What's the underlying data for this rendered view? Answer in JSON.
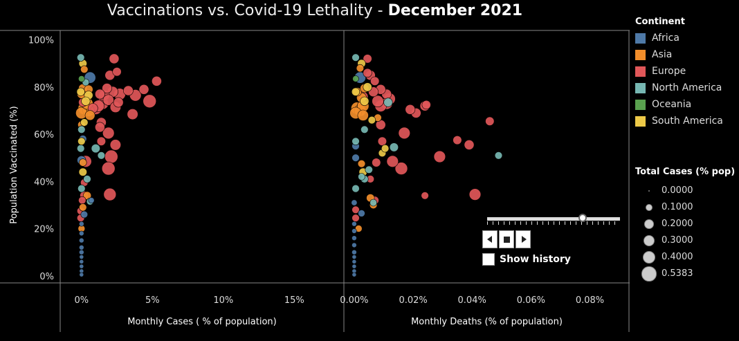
{
  "title": {
    "main": "Vaccinations vs. Covid-19 Lethality - ",
    "period": "December 2021"
  },
  "colors": {
    "Africa": "#4e79a7",
    "Asia": "#f28e2b",
    "Europe": "#e15759",
    "North America": "#76b7b2",
    "Oceania": "#59a14f",
    "South America": "#edc948"
  },
  "legend": {
    "title": "Continent",
    "items": [
      "Africa",
      "Asia",
      "Europe",
      "North America",
      "Oceania",
      "South America"
    ]
  },
  "size_legend": {
    "title": "Total Cases (% pop)",
    "items": [
      "0.0000",
      "0.1000",
      "0.2000",
      "0.3000",
      "0.4000",
      "0.5383"
    ],
    "values": [
      0,
      0.1,
      0.2,
      0.3,
      0.4,
      0.5383
    ]
  },
  "controls": {
    "show_history": "Show history",
    "slider_position": 0.72
  },
  "chart_data": [
    {
      "type": "scatter",
      "xlabel": "Monthly Cases ( % of population)",
      "ylabel": "Population Vaccinated (%)",
      "xlim": [
        -1.5,
        18.5
      ],
      "ylim": [
        -3,
        104
      ],
      "xticks": [
        0,
        5,
        10,
        15
      ],
      "xtick_labels": [
        "0%",
        "5%",
        "10%",
        "15%"
      ],
      "yticks": [
        0,
        20,
        40,
        60,
        80,
        100
      ],
      "ytick_labels": [
        "0%",
        "20%",
        "40%",
        "60%",
        "80%",
        "100%"
      ],
      "grid": false,
      "points": [
        {
          "x": 2.3,
          "y": 92,
          "c": "Europe",
          "s": 0.2
        },
        {
          "x": 2.5,
          "y": 86.5,
          "c": "Europe",
          "s": 0.15
        },
        {
          "x": 2.0,
          "y": 85,
          "c": "Europe",
          "s": 0.2
        },
        {
          "x": 5.3,
          "y": 82.5,
          "c": "Europe",
          "s": 0.2
        },
        {
          "x": 4.4,
          "y": 79,
          "c": "Europe",
          "s": 0.2
        },
        {
          "x": 3.3,
          "y": 78.5,
          "c": "Europe",
          "s": 0.2
        },
        {
          "x": 2.7,
          "y": 77,
          "c": "Europe",
          "s": 0.3
        },
        {
          "x": 2.2,
          "y": 78,
          "c": "Europe",
          "s": 0.25
        },
        {
          "x": 1.8,
          "y": 79.5,
          "c": "Europe",
          "s": 0.2
        },
        {
          "x": 1.6,
          "y": 76.5,
          "c": "Europe",
          "s": 0.25
        },
        {
          "x": 1.3,
          "y": 77,
          "c": "Europe",
          "s": 0.2
        },
        {
          "x": 1.9,
          "y": 74.5,
          "c": "Europe",
          "s": 0.25
        },
        {
          "x": 1.5,
          "y": 73,
          "c": "Europe",
          "s": 0.3
        },
        {
          "x": 1.2,
          "y": 72,
          "c": "Europe",
          "s": 0.3
        },
        {
          "x": 1.0,
          "y": 71,
          "c": "Europe",
          "s": 0.35
        },
        {
          "x": 2.4,
          "y": 71.5,
          "c": "Europe",
          "s": 0.25
        },
        {
          "x": 2.6,
          "y": 73.5,
          "c": "Europe",
          "s": 0.2
        },
        {
          "x": 3.8,
          "y": 76.5,
          "c": "Europe",
          "s": 0.3
        },
        {
          "x": 4.8,
          "y": 74,
          "c": "Europe",
          "s": 0.4
        },
        {
          "x": 3.6,
          "y": 68.5,
          "c": "Europe",
          "s": 0.25
        },
        {
          "x": 1.4,
          "y": 65,
          "c": "Europe",
          "s": 0.2
        },
        {
          "x": 1.3,
          "y": 63,
          "c": "Europe",
          "s": 0.2
        },
        {
          "x": 1.9,
          "y": 60.5,
          "c": "Europe",
          "s": 0.3
        },
        {
          "x": 1.4,
          "y": 57,
          "c": "Europe",
          "s": 0.15
        },
        {
          "x": 2.4,
          "y": 55.5,
          "c": "Europe",
          "s": 0.25
        },
        {
          "x": 2.1,
          "y": 50.5,
          "c": "Europe",
          "s": 0.4
        },
        {
          "x": 1.9,
          "y": 45.5,
          "c": "Europe",
          "s": 0.4
        },
        {
          "x": 2.0,
          "y": 34.5,
          "c": "Europe",
          "s": 0.35
        },
        {
          "x": 0.1,
          "y": 73.5,
          "c": "Europe",
          "s": 0.15
        },
        {
          "x": 0.3,
          "y": 48.5,
          "c": "Europe",
          "s": 0.3
        },
        {
          "x": 0.2,
          "y": 34,
          "c": "Europe",
          "s": 0.15
        },
        {
          "x": 0.05,
          "y": 32,
          "c": "Europe",
          "s": 0.1
        },
        {
          "x": -0.05,
          "y": 27.5,
          "c": "Europe",
          "s": 0.1
        },
        {
          "x": -0.05,
          "y": 24.5,
          "c": "Europe",
          "s": 0.1
        },
        {
          "x": 0.2,
          "y": 39.5,
          "c": "Europe",
          "s": 0.1
        },
        {
          "x": 0.8,
          "y": 71,
          "c": "Europe",
          "s": 0.2
        },
        {
          "x": 0.5,
          "y": 70,
          "c": "Asia",
          "s": 0.3
        },
        {
          "x": 0.2,
          "y": 71,
          "c": "Asia",
          "s": 0.35
        },
        {
          "x": 0.0,
          "y": 69,
          "c": "Asia",
          "s": 0.3
        },
        {
          "x": 0.4,
          "y": 73,
          "c": "Asia",
          "s": 0.3
        },
        {
          "x": 0.6,
          "y": 68,
          "c": "Asia",
          "s": 0.2
        },
        {
          "x": 0.3,
          "y": 76,
          "c": "Asia",
          "s": 0.2
        },
        {
          "x": 0.1,
          "y": 79.5,
          "c": "Asia",
          "s": 0.15
        },
        {
          "x": 0.5,
          "y": 79,
          "c": "Asia",
          "s": 0.15
        },
        {
          "x": 0.0,
          "y": 77,
          "c": "Asia",
          "s": 0.15
        },
        {
          "x": 0.2,
          "y": 87.5,
          "c": "Asia",
          "s": 0.1
        },
        {
          "x": 0.0,
          "y": 64,
          "c": "Asia",
          "s": 0.1
        },
        {
          "x": 0.1,
          "y": 48,
          "c": "Asia",
          "s": 0.1
        },
        {
          "x": 0.4,
          "y": 34,
          "c": "Asia",
          "s": 0.12
        },
        {
          "x": 0.1,
          "y": 29,
          "c": "Asia",
          "s": 0.1
        },
        {
          "x": 0.0,
          "y": 20,
          "c": "Asia",
          "s": 0.08
        },
        {
          "x": 0.6,
          "y": 84,
          "c": "Africa",
          "s": 0.28
        },
        {
          "x": 0.0,
          "y": 49,
          "c": "Africa",
          "s": 0.15
        },
        {
          "x": 0.1,
          "y": 58,
          "c": "Africa",
          "s": 0.1
        },
        {
          "x": 0.2,
          "y": 26,
          "c": "Africa",
          "s": 0.08
        },
        {
          "x": 0.0,
          "y": 15,
          "c": "Africa",
          "s": 0.03
        },
        {
          "x": 0.0,
          "y": 12,
          "c": "Africa",
          "s": 0.03
        },
        {
          "x": 0.0,
          "y": 10,
          "c": "Africa",
          "s": 0.03
        },
        {
          "x": 0.0,
          "y": 8,
          "c": "Africa",
          "s": 0.02
        },
        {
          "x": 0.0,
          "y": 6,
          "c": "Africa",
          "s": 0.02
        },
        {
          "x": 0.0,
          "y": 4,
          "c": "Africa",
          "s": 0.02
        },
        {
          "x": 0.0,
          "y": 2,
          "c": "Africa",
          "s": 0.02
        },
        {
          "x": 0.0,
          "y": 0.5,
          "c": "Africa",
          "s": 0.02
        },
        {
          "x": 0.0,
          "y": 18,
          "c": "Africa",
          "s": 0.03
        },
        {
          "x": 0.0,
          "y": 22,
          "c": "Africa",
          "s": 0.03
        },
        {
          "x": 0.7,
          "y": 32,
          "c": "Africa",
          "s": 0.05
        },
        {
          "x": -0.05,
          "y": 92.5,
          "c": "North America",
          "s": 0.1
        },
        {
          "x": 1.0,
          "y": 54,
          "c": "North America",
          "s": 0.15
        },
        {
          "x": 1.4,
          "y": 51,
          "c": "North America",
          "s": 0.1
        },
        {
          "x": 0.4,
          "y": 41,
          "c": "North America",
          "s": 0.1
        },
        {
          "x": 0.0,
          "y": 37,
          "c": "North America",
          "s": 0.1
        },
        {
          "x": -0.05,
          "y": 54,
          "c": "North America",
          "s": 0.1
        },
        {
          "x": 0.0,
          "y": 62,
          "c": "North America",
          "s": 0.1
        },
        {
          "x": 0.6,
          "y": 31.5,
          "c": "North America",
          "s": 0.08
        },
        {
          "x": 0.3,
          "y": 82,
          "c": "North America",
          "s": 0.08
        },
        {
          "x": 0.1,
          "y": 90,
          "c": "South America",
          "s": 0.12
        },
        {
          "x": 0.5,
          "y": 76.5,
          "c": "South America",
          "s": 0.15
        },
        {
          "x": 0.3,
          "y": 74,
          "c": "South America",
          "s": 0.15
        },
        {
          "x": 0.1,
          "y": 44,
          "c": "South America",
          "s": 0.12
        },
        {
          "x": 0.0,
          "y": 57,
          "c": "South America",
          "s": 0.1
        },
        {
          "x": 0.2,
          "y": 65,
          "c": "South America",
          "s": 0.1
        },
        {
          "x": -0.05,
          "y": 78,
          "c": "South America",
          "s": 0.12
        },
        {
          "x": 0.0,
          "y": 83.5,
          "c": "Oceania",
          "s": 0.06
        }
      ]
    },
    {
      "type": "scatter",
      "xlabel": "Monthly Deaths (% of population)",
      "xlim": [
        -0.0035,
        0.0935
      ],
      "ylim": [
        -3,
        104
      ],
      "xticks": [
        0,
        0.02,
        0.04,
        0.06,
        0.08
      ],
      "xtick_labels": [
        "0.00%",
        "0.02%",
        "0.04%",
        "0.06%",
        "0.08%"
      ],
      "grid": false,
      "points": [
        {
          "x": 0.0045,
          "y": 92,
          "c": "Europe",
          "s": 0.15
        },
        {
          "x": 0.046,
          "y": 65.5,
          "c": "Europe",
          "s": 0.15
        },
        {
          "x": 0.039,
          "y": 55.5,
          "c": "Europe",
          "s": 0.2
        },
        {
          "x": 0.035,
          "y": 57.5,
          "c": "Europe",
          "s": 0.15
        },
        {
          "x": 0.029,
          "y": 50.5,
          "c": "Europe",
          "s": 0.3
        },
        {
          "x": 0.041,
          "y": 34.5,
          "c": "Europe",
          "s": 0.3
        },
        {
          "x": 0.024,
          "y": 34,
          "c": "Europe",
          "s": 0.1
        },
        {
          "x": 0.024,
          "y": 72,
          "c": "Europe",
          "s": 0.2
        },
        {
          "x": 0.0245,
          "y": 72.5,
          "c": "Europe",
          "s": 0.15
        },
        {
          "x": 0.021,
          "y": 69,
          "c": "Europe",
          "s": 0.2
        },
        {
          "x": 0.019,
          "y": 70.5,
          "c": "Europe",
          "s": 0.2
        },
        {
          "x": 0.017,
          "y": 60.5,
          "c": "Europe",
          "s": 0.3
        },
        {
          "x": 0.016,
          "y": 45.5,
          "c": "Europe",
          "s": 0.35
        },
        {
          "x": 0.013,
          "y": 48.5,
          "c": "Europe",
          "s": 0.3
        },
        {
          "x": 0.012,
          "y": 75,
          "c": "Europe",
          "s": 0.3
        },
        {
          "x": 0.011,
          "y": 73,
          "c": "Europe",
          "s": 0.3
        },
        {
          "x": 0.009,
          "y": 72,
          "c": "Europe",
          "s": 0.3
        },
        {
          "x": 0.008,
          "y": 74,
          "c": "Europe",
          "s": 0.3
        },
        {
          "x": 0.011,
          "y": 77,
          "c": "Europe",
          "s": 0.2
        },
        {
          "x": 0.009,
          "y": 79,
          "c": "Europe",
          "s": 0.2
        },
        {
          "x": 0.007,
          "y": 82.5,
          "c": "Europe",
          "s": 0.15
        },
        {
          "x": 0.0065,
          "y": 78,
          "c": "Europe",
          "s": 0.2
        },
        {
          "x": 0.0055,
          "y": 85,
          "c": "Europe",
          "s": 0.2
        },
        {
          "x": 0.0045,
          "y": 86,
          "c": "Europe",
          "s": 0.15
        },
        {
          "x": 0.009,
          "y": 64,
          "c": "Europe",
          "s": 0.2
        },
        {
          "x": 0.0095,
          "y": 57,
          "c": "Europe",
          "s": 0.15
        },
        {
          "x": 0.0005,
          "y": 28,
          "c": "Europe",
          "s": 0.1
        },
        {
          "x": 0.0005,
          "y": 24.5,
          "c": "Europe",
          "s": 0.1
        },
        {
          "x": 0.007,
          "y": 32,
          "c": "Europe",
          "s": 0.12
        },
        {
          "x": 0.0055,
          "y": 41,
          "c": "Europe",
          "s": 0.1
        },
        {
          "x": 0.0075,
          "y": 48,
          "c": "Europe",
          "s": 0.15
        },
        {
          "x": 0.003,
          "y": 76,
          "c": "Europe",
          "s": 0.2
        },
        {
          "x": 0.002,
          "y": 70,
          "c": "Asia",
          "s": 0.3
        },
        {
          "x": 0.001,
          "y": 71,
          "c": "Asia",
          "s": 0.35
        },
        {
          "x": 0.003,
          "y": 72,
          "c": "Asia",
          "s": 0.3
        },
        {
          "x": 0.0005,
          "y": 69,
          "c": "Asia",
          "s": 0.3
        },
        {
          "x": 0.003,
          "y": 68,
          "c": "Asia",
          "s": 0.25
        },
        {
          "x": 0.0025,
          "y": 75.5,
          "c": "Asia",
          "s": 0.2
        },
        {
          "x": 0.001,
          "y": 78,
          "c": "Asia",
          "s": 0.15
        },
        {
          "x": 0.0035,
          "y": 79.5,
          "c": "Asia",
          "s": 0.15
        },
        {
          "x": 0.002,
          "y": 88,
          "c": "Asia",
          "s": 0.1
        },
        {
          "x": 0.0055,
          "y": 33,
          "c": "Asia",
          "s": 0.12
        },
        {
          "x": 0.0025,
          "y": 47.5,
          "c": "Asia",
          "s": 0.1
        },
        {
          "x": 0.0065,
          "y": 30,
          "c": "Asia",
          "s": 0.1
        },
        {
          "x": 0.008,
          "y": 67,
          "c": "Asia",
          "s": 0.1
        },
        {
          "x": 0.0015,
          "y": 20,
          "c": "Asia",
          "s": 0.08
        },
        {
          "x": 0.002,
          "y": 84,
          "c": "Africa",
          "s": 0.28
        },
        {
          "x": 0.0005,
          "y": 55,
          "c": "Africa",
          "s": 0.1
        },
        {
          "x": 0.0005,
          "y": 50,
          "c": "Africa",
          "s": 0.1
        },
        {
          "x": 0.0025,
          "y": 26.5,
          "c": "Africa",
          "s": 0.08
        },
        {
          "x": 0.0,
          "y": 16,
          "c": "Africa",
          "s": 0.03
        },
        {
          "x": 0.0,
          "y": 13,
          "c": "Africa",
          "s": 0.03
        },
        {
          "x": 0.0,
          "y": 10,
          "c": "Africa",
          "s": 0.03
        },
        {
          "x": 0.0,
          "y": 8,
          "c": "Africa",
          "s": 0.02
        },
        {
          "x": 0.0,
          "y": 6,
          "c": "Africa",
          "s": 0.02
        },
        {
          "x": 0.0,
          "y": 4,
          "c": "Africa",
          "s": 0.02
        },
        {
          "x": 0.0,
          "y": 2,
          "c": "Africa",
          "s": 0.02
        },
        {
          "x": 0.0,
          "y": 0.5,
          "c": "Africa",
          "s": 0.02
        },
        {
          "x": 0.0,
          "y": 19,
          "c": "Africa",
          "s": 0.03
        },
        {
          "x": 0.0,
          "y": 22,
          "c": "Africa",
          "s": 0.03
        },
        {
          "x": 0.0,
          "y": 31,
          "c": "Africa",
          "s": 0.05
        },
        {
          "x": 0.0005,
          "y": 92.5,
          "c": "North America",
          "s": 0.1
        },
        {
          "x": 0.049,
          "y": 51,
          "c": "North America",
          "s": 0.1
        },
        {
          "x": 0.0135,
          "y": 54.5,
          "c": "North America",
          "s": 0.15
        },
        {
          "x": 0.0115,
          "y": 73.5,
          "c": "North America",
          "s": 0.15
        },
        {
          "x": 0.0035,
          "y": 41,
          "c": "North America",
          "s": 0.1
        },
        {
          "x": 0.0005,
          "y": 37,
          "c": "North America",
          "s": 0.1
        },
        {
          "x": 0.0005,
          "y": 57,
          "c": "North America",
          "s": 0.1
        },
        {
          "x": 0.005,
          "y": 45,
          "c": "North America",
          "s": 0.1
        },
        {
          "x": 0.0035,
          "y": 62,
          "c": "North America",
          "s": 0.1
        },
        {
          "x": 0.0065,
          "y": 31,
          "c": "North America",
          "s": 0.08
        },
        {
          "x": 0.0025,
          "y": 42,
          "c": "North America",
          "s": 0.08
        },
        {
          "x": 0.0025,
          "y": 90,
          "c": "South America",
          "s": 0.12
        },
        {
          "x": 0.0045,
          "y": 80,
          "c": "South America",
          "s": 0.15
        },
        {
          "x": 0.0035,
          "y": 74,
          "c": "South America",
          "s": 0.15
        },
        {
          "x": 0.003,
          "y": 44,
          "c": "South America",
          "s": 0.12
        },
        {
          "x": 0.0095,
          "y": 52,
          "c": "South America",
          "s": 0.1
        },
        {
          "x": 0.0105,
          "y": 54,
          "c": "South America",
          "s": 0.1
        },
        {
          "x": 0.0005,
          "y": 78,
          "c": "South America",
          "s": 0.12
        },
        {
          "x": 0.006,
          "y": 66,
          "c": "South America",
          "s": 0.1
        },
        {
          "x": 0.0005,
          "y": 83.5,
          "c": "Oceania",
          "s": 0.06
        }
      ]
    }
  ]
}
